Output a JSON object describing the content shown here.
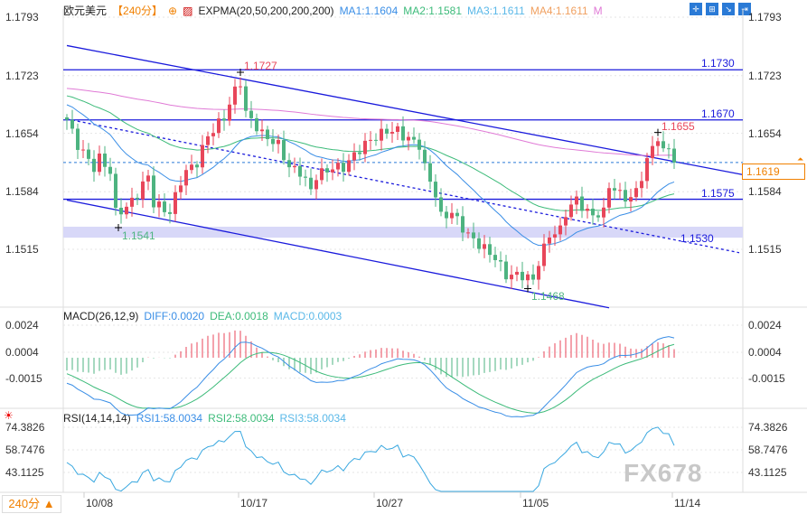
{
  "header": {
    "symbol": "欧元美元",
    "period": "【240分】",
    "indicator": "EXPMA(20,50,200,200,200)",
    "ma1": "MA1:1.1604",
    "ma2": "MA2:1.1581",
    "ma3": "MA3:1.1611",
    "ma4": "MA4:1.1611",
    "ma5": "M"
  },
  "macd_header": {
    "name": "MACD(26,12,9)",
    "diff": "DIFF:0.0020",
    "dea": "DEA:0.0018",
    "macd": "MACD:0.0003"
  },
  "rsi_header": {
    "name": "RSI(14,14,14)",
    "rsi1": "RSI1:58.0034",
    "rsi2": "RSI2:58.0034",
    "rsi3": "RSI3:58.0034"
  },
  "period_button": "240分 ▲",
  "watermark": "FX678",
  "current_price": "1.1619",
  "colors": {
    "up": "#e8465a",
    "down": "#4db380",
    "ema20": "#3a8ee6",
    "ema50": "#3dbb7a",
    "ema200": "#e07ad6",
    "lines": "#1a1adc",
    "band": "#d8d8f8",
    "current": "#2a7ad6",
    "rsi": "#3aa8e0"
  },
  "chart_data": {
    "type": "candlestick",
    "price_axis": {
      "ticks": [
        "1.1793",
        "1.1723",
        "1.1654",
        "1.1584",
        "1.1515"
      ],
      "range": [
        1.1515,
        1.1793
      ]
    },
    "macd_axis": {
      "ticks": [
        "0.0024",
        "0.0004",
        "-0.0015"
      ]
    },
    "rsi_axis": {
      "ticks": [
        "74.3826",
        "58.7476",
        "43.1125"
      ]
    },
    "dates": [
      {
        "label": "10/08",
        "index": 3.5
      },
      {
        "label": "10/17",
        "index": 32
      },
      {
        "label": "10/27",
        "index": 57
      },
      {
        "label": "11/05",
        "index": 84
      },
      {
        "label": "11/14",
        "index": 112
      }
    ],
    "close_path": [
      [
        0,
        1.167
      ],
      [
        2,
        1.164
      ],
      [
        5,
        1.1613
      ],
      [
        6,
        1.1624
      ],
      [
        8,
        1.1608
      ],
      [
        9,
        1.1559
      ],
      [
        11,
        1.1565
      ],
      [
        13,
        1.1581
      ],
      [
        15,
        1.1603
      ],
      [
        16,
        1.157
      ],
      [
        19,
        1.1559
      ],
      [
        21,
        1.1597
      ],
      [
        22,
        1.1608
      ],
      [
        24,
        1.1619
      ],
      [
        26,
        1.1651
      ],
      [
        29,
        1.1673
      ],
      [
        31,
        1.1705
      ],
      [
        32,
        1.1716
      ],
      [
        33,
        1.1678
      ],
      [
        35,
        1.1662
      ],
      [
        36,
        1.1653
      ],
      [
        39,
        1.164
      ],
      [
        41,
        1.1613
      ],
      [
        43,
        1.1608
      ],
      [
        45,
        1.1586
      ],
      [
        46,
        1.1603
      ],
      [
        49,
        1.1613
      ],
      [
        51,
        1.1613
      ],
      [
        54,
        1.1635
      ],
      [
        56,
        1.1646
      ],
      [
        59,
        1.1657
      ],
      [
        61,
        1.1657
      ],
      [
        62,
        1.1651
      ],
      [
        65,
        1.164
      ],
      [
        66,
        1.1613
      ],
      [
        68,
        1.1581
      ],
      [
        69,
        1.1554
      ],
      [
        71,
        1.1559
      ],
      [
        74,
        1.1532
      ],
      [
        76,
        1.1521
      ],
      [
        79,
        1.1505
      ],
      [
        81,
        1.1484
      ],
      [
        84,
        1.1484
      ],
      [
        86,
        1.1478
      ],
      [
        87,
        1.15
      ],
      [
        89,
        1.1532
      ],
      [
        91,
        1.1538
      ],
      [
        92,
        1.1559
      ],
      [
        94,
        1.1575
      ],
      [
        96,
        1.1559
      ],
      [
        97,
        1.1556
      ],
      [
        99,
        1.1559
      ],
      [
        100,
        1.1592
      ],
      [
        102,
        1.1581
      ],
      [
        104,
        1.1575
      ],
      [
        105,
        1.1586
      ],
      [
        107,
        1.1619
      ],
      [
        108,
        1.164
      ],
      [
        109,
        1.1648
      ],
      [
        110,
        1.163
      ],
      [
        111,
        1.164
      ],
      [
        112,
        1.1619
      ]
    ],
    "annotations": [
      {
        "label": "1.1727",
        "index": 32,
        "price": 1.1727,
        "color": "#e8465a"
      },
      {
        "label": "1.1541",
        "index": 9.5,
        "price": 1.1541,
        "color": "#4db380"
      },
      {
        "label": "1.1468",
        "index": 85,
        "price": 1.1468,
        "color": "#4db380"
      },
      {
        "label": "1.1655",
        "index": 109,
        "price": 1.1655,
        "color": "#e8465a"
      }
    ],
    "horizontal_levels": [
      {
        "label": "1.1730",
        "price": 1.173
      },
      {
        "label": "1.1670",
        "price": 1.167
      },
      {
        "label": "1.1575",
        "price": 1.1575
      }
    ],
    "support_band": {
      "from": 1.153,
      "to": 1.1541
    },
    "dashed_trend": {
      "label": "1.1530",
      "from": [
        0,
        1.1671
      ],
      "to": [
        124,
        1.1511
      ]
    },
    "channel_upper": {
      "from": [
        0,
        1.1759
      ],
      "to": [
        125,
        1.1604
      ]
    },
    "channel_lower": {
      "from": [
        0,
        1.1574
      ],
      "to": [
        100,
        1.1445
      ]
    },
    "ema_periods": [
      20,
      50,
      200
    ]
  }
}
